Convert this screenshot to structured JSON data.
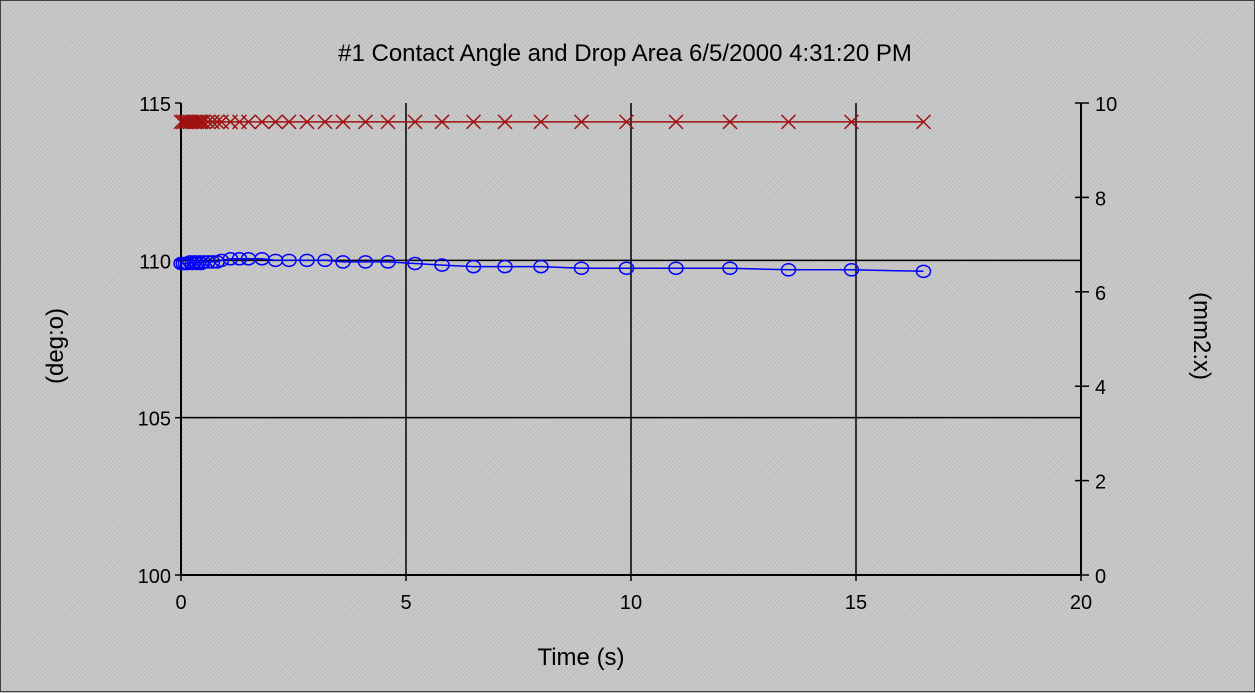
{
  "chart_data": {
    "type": "line",
    "title": "#1 Contact Angle and Drop Area  6/5/2000 4:31:20 PM",
    "xlabel": "Time (s)",
    "ylabel": "(deg:o)",
    "y2label": "(mm2:x)",
    "xlim": [
      0,
      20
    ],
    "ylim": [
      100,
      115
    ],
    "y2lim": [
      0,
      10
    ],
    "xticks": [
      "0",
      "5",
      "10",
      "15",
      "20"
    ],
    "yticks": [
      "100",
      "105",
      "110",
      "115"
    ],
    "y2ticks": [
      "0",
      "2",
      "4",
      "6",
      "8",
      "10"
    ],
    "grid": true,
    "series": [
      {
        "axis": "left",
        "marker": "circle",
        "color": "#0000ff",
        "x": [
          0,
          0.05,
          0.1,
          0.15,
          0.2,
          0.25,
          0.3,
          0.35,
          0.4,
          0.45,
          0.5,
          0.6,
          0.7,
          0.8,
          0.9,
          1.1,
          1.3,
          1.5,
          1.8,
          2.1,
          2.4,
          2.8,
          3.2,
          3.6,
          4.1,
          4.6,
          5.2,
          5.8,
          6.5,
          7.2,
          8.0,
          8.9,
          9.9,
          11.0,
          12.2,
          13.5,
          14.9,
          16.5
        ],
        "y": [
          109.9,
          109.9,
          109.9,
          109.9,
          109.95,
          109.9,
          109.95,
          109.9,
          109.95,
          109.9,
          109.95,
          109.95,
          109.95,
          109.95,
          110.0,
          110.05,
          110.05,
          110.05,
          110.05,
          110.0,
          110.0,
          110.0,
          110.0,
          109.95,
          109.95,
          109.95,
          109.9,
          109.85,
          109.8,
          109.8,
          109.8,
          109.75,
          109.75,
          109.75,
          109.75,
          109.7,
          109.7,
          109.65
        ]
      },
      {
        "axis": "right",
        "marker": "x",
        "color": "#a01010",
        "x": [
          0,
          0.05,
          0.1,
          0.15,
          0.2,
          0.25,
          0.3,
          0.35,
          0.4,
          0.45,
          0.5,
          0.6,
          0.7,
          0.8,
          0.9,
          1.1,
          1.3,
          1.5,
          1.8,
          2.1,
          2.4,
          2.8,
          3.2,
          3.6,
          4.1,
          4.6,
          5.2,
          5.8,
          6.5,
          7.2,
          8.0,
          8.9,
          9.9,
          11.0,
          12.2,
          13.5,
          14.9,
          16.5
        ],
        "y": [
          9.6,
          9.6,
          9.6,
          9.6,
          9.6,
          9.6,
          9.6,
          9.6,
          9.6,
          9.6,
          9.6,
          9.6,
          9.6,
          9.6,
          9.6,
          9.6,
          9.6,
          9.6,
          9.6,
          9.6,
          9.6,
          9.6,
          9.6,
          9.6,
          9.6,
          9.6,
          9.6,
          9.6,
          9.6,
          9.6,
          9.6,
          9.6,
          9.6,
          9.6,
          9.6,
          9.6,
          9.6,
          9.6
        ]
      }
    ]
  }
}
